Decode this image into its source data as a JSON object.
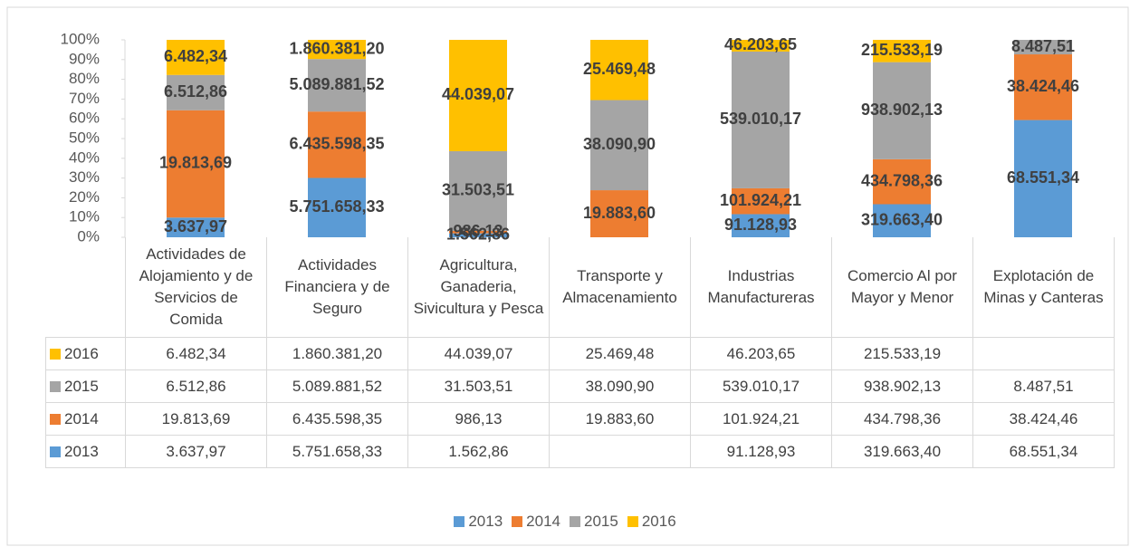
{
  "chart_data": {
    "type": "stacked100",
    "categories": [
      "Actividades de Alojamiento y de Servicios de Comida",
      "Actividades Financiera y de Seguro",
      "Agricultura, Ganaderia, Sivicultura y Pesca",
      "Transporte y Almacenamiento",
      "Industrias Manufactureras",
      "Comercio Al por Mayor y Menor",
      "Explotación de Minas y Canteras"
    ],
    "series": [
      {
        "name": "2013",
        "color": "#5b9bd5",
        "values": [
          3637.97,
          5751658.33,
          1562.86,
          null,
          91128.93,
          319663.4,
          68551.34
        ],
        "value_labels": [
          "3.637,97",
          "5.751.658,33",
          "1.562,86",
          null,
          "91.128,93",
          "319.663,40",
          "68.551,34"
        ]
      },
      {
        "name": "2014",
        "color": "#ed7d31",
        "values": [
          19813.69,
          6435598.35,
          986.13,
          19883.6,
          101924.21,
          434798.36,
          38424.46
        ],
        "value_labels": [
          "19.813,69",
          "6.435.598,35",
          "986,13",
          "19.883,60",
          "101.924,21",
          "434.798,36",
          "38.424,46"
        ]
      },
      {
        "name": "2015",
        "color": "#a5a5a5",
        "values": [
          6512.86,
          5089881.52,
          31503.51,
          38090.9,
          539010.17,
          938902.13,
          8487.51
        ],
        "value_labels": [
          "6.512,86",
          "5.089.881,52",
          "31.503,51",
          "38.090,90",
          "539.010,17",
          "938.902,13",
          "8.487,51"
        ]
      },
      {
        "name": "2016",
        "color": "#ffc000",
        "values": [
          6482.34,
          1860381.2,
          44039.07,
          25469.48,
          46203.65,
          215533.19,
          null
        ],
        "value_labels": [
          "6.482,34",
          "1.860.381,20",
          "44.039,07",
          "25.469,48",
          "46.203,65",
          "215.533,19",
          null
        ]
      }
    ],
    "ylim": [
      0,
      100
    ],
    "yticks": [
      {
        "value": 0,
        "label": "0%"
      },
      {
        "value": 10,
        "label": "10%"
      },
      {
        "value": 20,
        "label": "20%"
      },
      {
        "value": 30,
        "label": "30%"
      },
      {
        "value": 40,
        "label": "40%"
      },
      {
        "value": 50,
        "label": "50%"
      },
      {
        "value": 60,
        "label": "60%"
      },
      {
        "value": 70,
        "label": "70%"
      },
      {
        "value": 80,
        "label": "80%"
      },
      {
        "value": 90,
        "label": "90%"
      },
      {
        "value": 100,
        "label": "100%"
      }
    ],
    "legend": "bottom",
    "data_table": true
  }
}
